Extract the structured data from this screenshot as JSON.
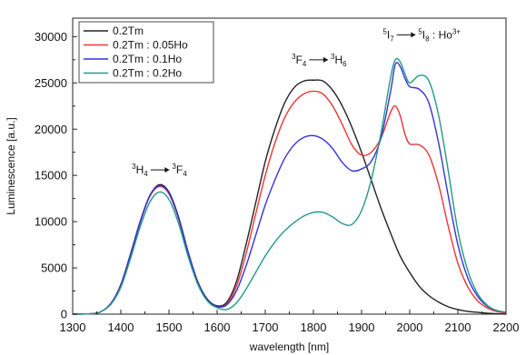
{
  "chart_data": {
    "type": "line",
    "title": "",
    "xlabel": "wavelength [nm]",
    "ylabel": "Luminescence [a.u.]",
    "xlim": [
      1300,
      2200
    ],
    "ylim": [
      0,
      32000
    ],
    "x_ticks": [
      1300,
      1400,
      1500,
      1600,
      1700,
      1800,
      1900,
      2000,
      2100,
      2200
    ],
    "y_ticks": [
      0,
      5000,
      10000,
      15000,
      20000,
      25000,
      30000
    ],
    "grid": false,
    "legend_position": "top-left",
    "series": [
      {
        "name": "0.2Tm",
        "color": "#222222",
        "x": [
          1300,
          1340,
          1360,
          1380,
          1400,
          1420,
          1440,
          1460,
          1480,
          1500,
          1520,
          1540,
          1560,
          1580,
          1600,
          1620,
          1640,
          1660,
          1680,
          1700,
          1720,
          1740,
          1760,
          1780,
          1800,
          1820,
          1840,
          1860,
          1880,
          1900,
          1920,
          1940,
          1960,
          1980,
          2000,
          2020,
          2040,
          2060,
          2080,
          2100,
          2120,
          2140,
          2160,
          2180,
          2200
        ],
        "y": [
          0,
          50,
          300,
          1200,
          3200,
          6500,
          10000,
          12800,
          14000,
          13200,
          10500,
          6700,
          3500,
          1600,
          900,
          1300,
          3500,
          7500,
          12000,
          16500,
          20000,
          22800,
          24500,
          25200,
          25300,
          25200,
          24200,
          22500,
          20200,
          17500,
          14500,
          11500,
          8800,
          6300,
          4500,
          3000,
          2000,
          1300,
          800,
          500,
          300,
          200,
          100,
          50,
          0
        ]
      },
      {
        "name": "0.2Tm : 0.05Ho",
        "color": "#ee3333",
        "x": [
          1300,
          1340,
          1360,
          1380,
          1400,
          1420,
          1440,
          1460,
          1480,
          1500,
          1520,
          1540,
          1560,
          1580,
          1600,
          1620,
          1640,
          1660,
          1680,
          1700,
          1720,
          1740,
          1760,
          1780,
          1800,
          1820,
          1840,
          1860,
          1880,
          1900,
          1920,
          1940,
          1960,
          1970,
          1980,
          1990,
          2000,
          2020,
          2040,
          2060,
          2080,
          2100,
          2120,
          2140,
          2160,
          2180,
          2200
        ],
        "y": [
          0,
          50,
          300,
          1200,
          3100,
          6400,
          9900,
          12700,
          13800,
          13000,
          10300,
          6600,
          3400,
          1500,
          800,
          1100,
          3000,
          6500,
          10800,
          15000,
          18500,
          21200,
          22900,
          23800,
          24100,
          23800,
          22500,
          20500,
          18300,
          17200,
          17500,
          19000,
          21800,
          22500,
          21500,
          19500,
          18400,
          18300,
          17200,
          14000,
          9500,
          5500,
          3000,
          1500,
          700,
          300,
          100
        ]
      },
      {
        "name": "0.2Tm : 0.1Ho",
        "color": "#3333dd",
        "x": [
          1300,
          1340,
          1360,
          1380,
          1400,
          1420,
          1440,
          1460,
          1480,
          1500,
          1520,
          1540,
          1560,
          1580,
          1600,
          1620,
          1640,
          1660,
          1680,
          1700,
          1720,
          1740,
          1760,
          1780,
          1800,
          1820,
          1840,
          1860,
          1880,
          1900,
          1920,
          1940,
          1960,
          1970,
          1980,
          1990,
          2000,
          2020,
          2040,
          2060,
          2080,
          2100,
          2120,
          2140,
          2160,
          2180,
          2200
        ],
        "y": [
          0,
          50,
          300,
          1200,
          3100,
          6400,
          9900,
          12800,
          13900,
          13100,
          10400,
          6600,
          3400,
          1500,
          800,
          1000,
          2500,
          5200,
          8500,
          11800,
          14500,
          16800,
          18300,
          19100,
          19300,
          18900,
          17900,
          16400,
          15500,
          15700,
          16500,
          19000,
          24000,
          27000,
          26800,
          25500,
          24600,
          24300,
          22800,
          18500,
          12800,
          7500,
          4000,
          2000,
          900,
          400,
          200
        ]
      },
      {
        "name": "0.2Tm : 0.2Ho",
        "color": "#229988",
        "x": [
          1300,
          1340,
          1360,
          1380,
          1400,
          1420,
          1440,
          1460,
          1480,
          1500,
          1520,
          1540,
          1560,
          1580,
          1600,
          1620,
          1640,
          1660,
          1680,
          1700,
          1720,
          1740,
          1760,
          1780,
          1800,
          1820,
          1840,
          1860,
          1880,
          1900,
          1920,
          1940,
          1960,
          1970,
          1980,
          1990,
          2000,
          2020,
          2040,
          2060,
          2080,
          2100,
          2120,
          2140,
          2160,
          2180,
          2200
        ],
        "y": [
          0,
          50,
          300,
          1100,
          2900,
          6000,
          9400,
          12100,
          13200,
          12400,
          9800,
          6200,
          3200,
          1400,
          700,
          500,
          1200,
          2700,
          4500,
          6300,
          7800,
          9000,
          9900,
          10600,
          11000,
          11000,
          10500,
          9800,
          9700,
          11200,
          14500,
          19500,
          25500,
          27500,
          27300,
          26000,
          25000,
          25800,
          25200,
          21500,
          15500,
          9000,
          4800,
          2300,
          1000,
          400,
          200
        ]
      }
    ],
    "annotations": [
      {
        "sup1": "3",
        "base1": "H",
        "sub1": "4",
        "sup2": "3",
        "base2": "F",
        "sub2": "4",
        "suffix": "",
        "x": 1480,
        "y": 15200
      },
      {
        "sup1": "3",
        "base1": "F",
        "sub1": "4",
        "sup2": "3",
        "base2": "H",
        "sub2": "6",
        "suffix": "",
        "x": 1812,
        "y": 27100
      },
      {
        "sup1": "5",
        "base1": "I",
        "sub1": "7",
        "sup2": "5",
        "base2": "I",
        "sub2": "8",
        "suffix": " : Ho",
        "suffix_sup": "3+",
        "x": 2025,
        "y": 29800
      }
    ]
  }
}
